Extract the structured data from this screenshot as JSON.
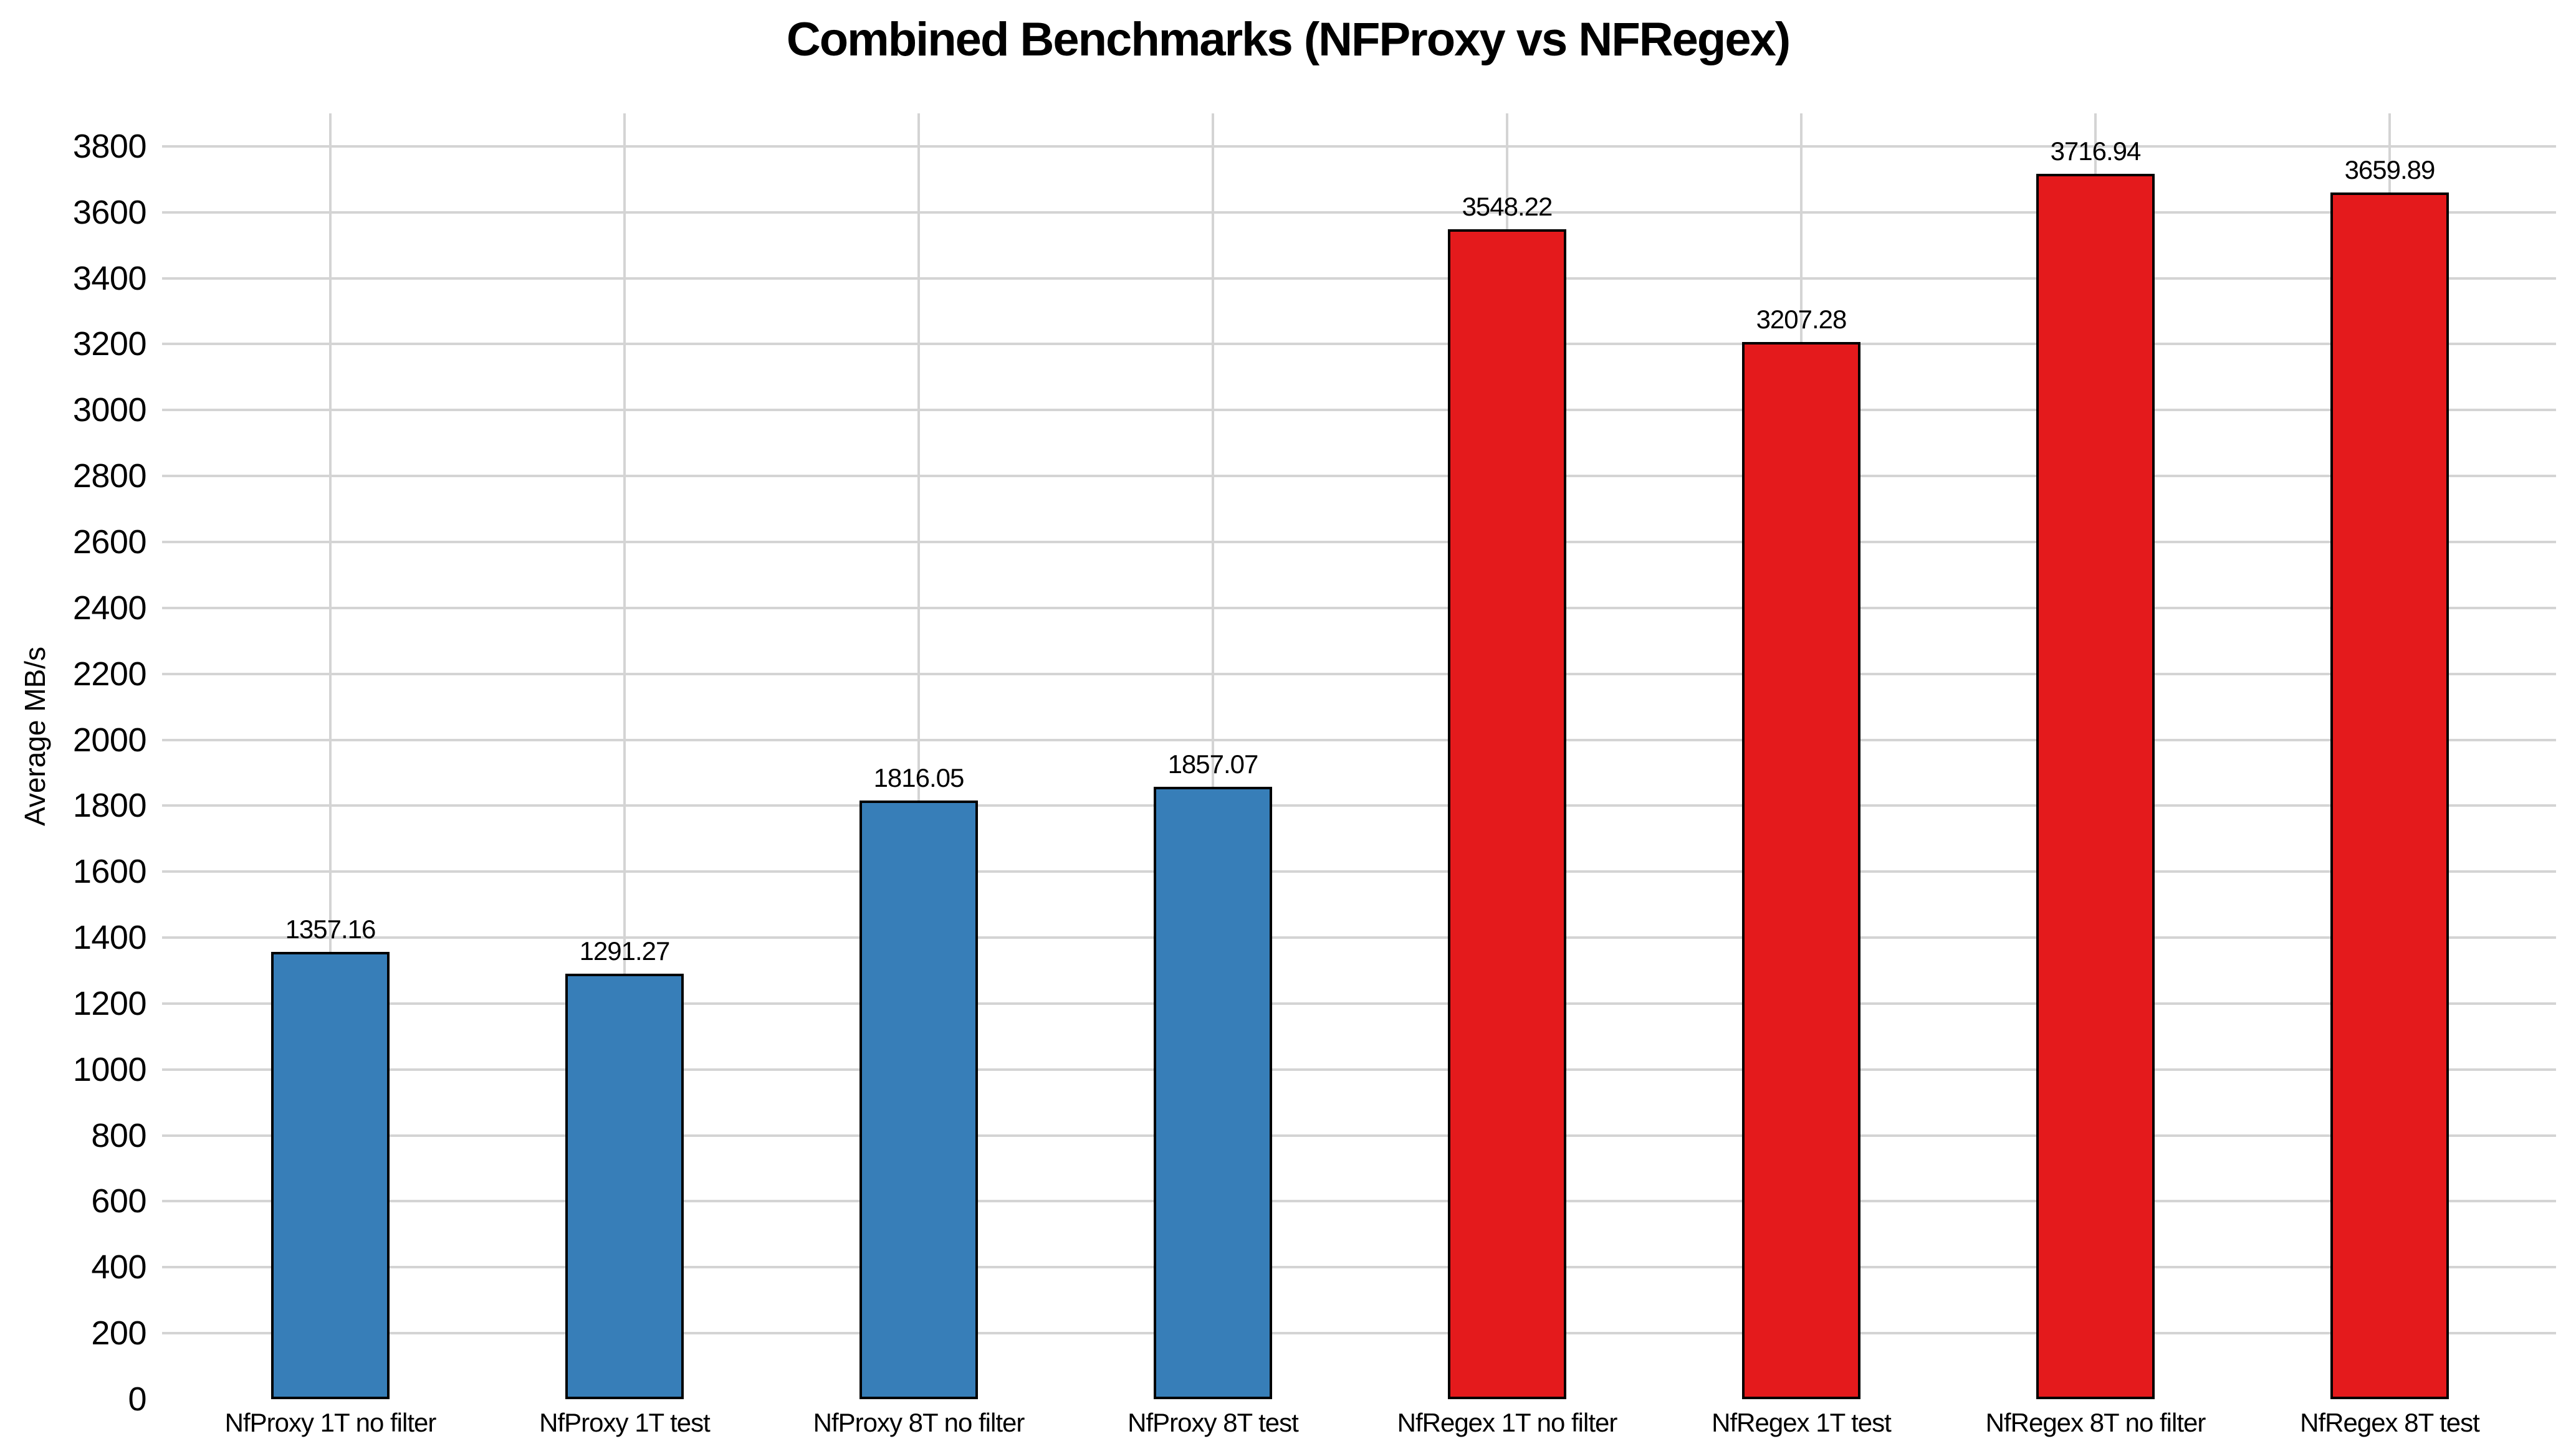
{
  "chart_data": {
    "type": "bar",
    "title": "Combined Benchmarks (NFProxy vs NFRegex)",
    "xlabel": "",
    "ylabel": "Average MB/s",
    "categories": [
      "NfProxy 1T no filter",
      "NfProxy 1T test",
      "NfProxy 8T no filter",
      "NfProxy 8T test",
      "NfRegex 1T no filter",
      "NfRegex 1T test",
      "NfRegex 8T no filter",
      "NfRegex 8T test"
    ],
    "values": [
      1357.16,
      1291.27,
      1816.05,
      1857.07,
      3548.22,
      3207.28,
      3716.94,
      3659.89
    ],
    "bar_colors": [
      "#377eb8",
      "#377eb8",
      "#377eb8",
      "#377eb8",
      "#e41a1c",
      "#e41a1c",
      "#e41a1c",
      "#e41a1c"
    ],
    "series_groups": [
      {
        "name": "NFProxy",
        "color": "#377eb8",
        "category_indexes": [
          0,
          1,
          2,
          3
        ]
      },
      {
        "name": "NFRegex",
        "color": "#e41a1c",
        "category_indexes": [
          4,
          5,
          6,
          7
        ]
      }
    ],
    "ylim": [
      0,
      3900
    ],
    "ytick_step": 200,
    "ytick_min": 0,
    "ytick_max": 3800,
    "grid": true,
    "legend_position": "none",
    "value_label_decimals": 2,
    "colors": {
      "background": "#ffffff",
      "gridline": "#d4d4d4",
      "bar_edge": "#000000",
      "text": "#000000"
    }
  }
}
